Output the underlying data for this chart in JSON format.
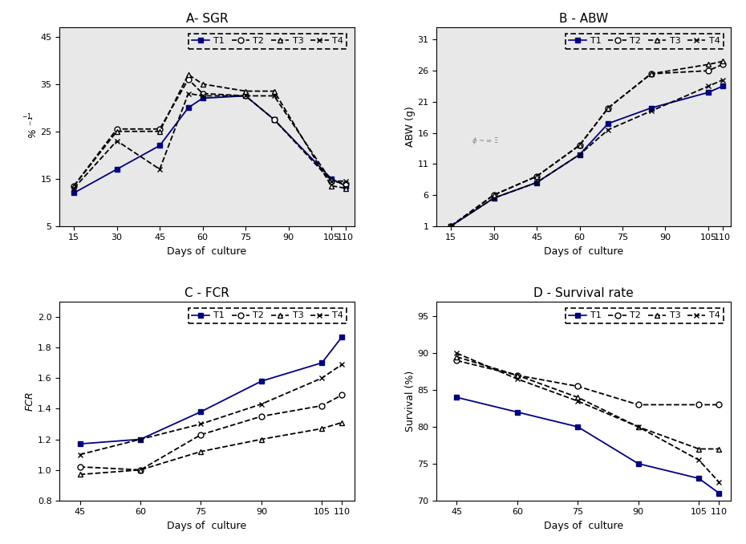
{
  "sgr": {
    "title": "A- SGR",
    "xlabel": "Days of  culture",
    "ylabel": "% ⁻¹",
    "days": [
      15,
      30,
      45,
      55,
      60,
      75,
      85,
      105,
      110
    ],
    "T1": [
      12.0,
      17.0,
      22.0,
      30.0,
      32.0,
      32.5,
      27.5,
      15.0,
      13.5
    ],
    "T2": [
      13.5,
      25.5,
      25.5,
      36.0,
      33.0,
      32.5,
      27.5,
      14.5,
      14.0
    ],
    "T3": [
      13.5,
      25.0,
      25.0,
      37.0,
      35.0,
      33.5,
      33.5,
      13.5,
      13.0
    ],
    "T4": [
      13.0,
      23.0,
      17.0,
      33.0,
      32.5,
      32.5,
      32.5,
      14.5,
      14.5
    ],
    "ylim": [
      5.0,
      47.0
    ],
    "yticks": [
      5.0,
      15.0,
      25.0,
      35.0,
      45.0
    ],
    "xticks": [
      15,
      30,
      45,
      60,
      75,
      90,
      105,
      110
    ],
    "xlim": [
      10,
      113
    ]
  },
  "abw": {
    "title": "B - ABW",
    "xlabel": "Days of  culture",
    "ylabel": "ABW (g)",
    "days": [
      15,
      30,
      45,
      60,
      70,
      85,
      105,
      110
    ],
    "T1": [
      1.0,
      5.5,
      8.0,
      12.5,
      17.5,
      20.0,
      22.5,
      23.5
    ],
    "T2": [
      1.0,
      6.0,
      9.0,
      14.0,
      20.0,
      25.5,
      26.0,
      27.0
    ],
    "T3": [
      1.0,
      6.0,
      9.0,
      14.0,
      20.0,
      25.5,
      27.0,
      27.5
    ],
    "T4": [
      1.0,
      5.5,
      8.0,
      12.5,
      16.5,
      19.5,
      23.5,
      24.5
    ],
    "ylim": [
      1.0,
      33.0
    ],
    "yticks": [
      1.0,
      6.0,
      11.0,
      16.0,
      21.0,
      26.0,
      31.0
    ],
    "xticks": [
      15,
      30,
      45,
      60,
      75,
      90,
      105,
      110
    ],
    "xlim": [
      10,
      113
    ]
  },
  "fcr": {
    "title": "C - FCR",
    "xlabel": "Days of  culture",
    "ylabel": "FCR",
    "days": [
      45,
      60,
      75,
      90,
      105,
      110
    ],
    "T1": [
      1.17,
      1.2,
      1.38,
      1.58,
      1.7,
      1.87
    ],
    "T2": [
      1.02,
      1.0,
      1.23,
      1.35,
      1.42,
      1.49
    ],
    "T3": [
      0.97,
      1.0,
      1.12,
      1.2,
      1.27,
      1.31
    ],
    "T4": [
      1.1,
      1.2,
      1.3,
      1.43,
      1.6,
      1.69
    ],
    "ylim": [
      0.8,
      2.1
    ],
    "yticks": [
      0.8,
      1.0,
      1.2,
      1.4,
      1.6,
      1.8,
      2.0
    ],
    "xticks": [
      45,
      60,
      75,
      90,
      105,
      110
    ],
    "xlim": [
      40,
      113
    ]
  },
  "survival": {
    "title": "D - Survival rate",
    "xlabel": "Days of  culture",
    "ylabel": "Survival (%)",
    "days": [
      45,
      60,
      75,
      90,
      105,
      110
    ],
    "T1": [
      84.0,
      82.0,
      80.0,
      75.0,
      73.0,
      71.0
    ],
    "T2": [
      89.0,
      87.0,
      85.5,
      83.0,
      83.0,
      83.0
    ],
    "T3": [
      89.5,
      87.0,
      84.0,
      80.0,
      77.0,
      77.0
    ],
    "T4": [
      90.0,
      86.5,
      83.5,
      80.0,
      75.5,
      72.5
    ],
    "ylim": [
      70.0,
      97.0
    ],
    "yticks": [
      70.0,
      75.0,
      80.0,
      85.0,
      90.0,
      95.0
    ],
    "xticks": [
      45,
      60,
      75,
      90,
      105,
      110
    ],
    "xlim": [
      40,
      113
    ]
  },
  "legend_labels": [
    "T1",
    "T2",
    "T3",
    "T4"
  ],
  "panel_bg": "#e8e8e8",
  "T1_color": "#000080",
  "T2_color": "#000000",
  "T3_color": "#000000",
  "T4_color": "#000000"
}
